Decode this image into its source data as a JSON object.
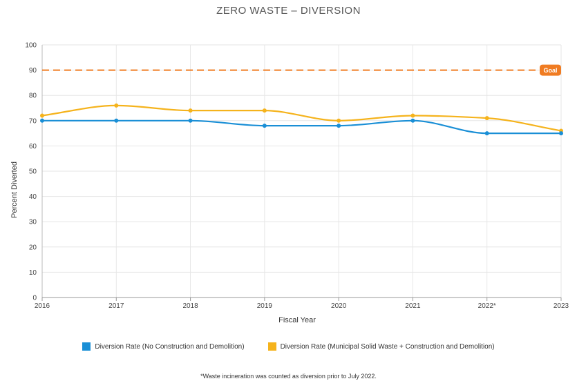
{
  "chart_data": {
    "type": "line",
    "title": "ZERO WASTE – DIVERSION",
    "xlabel": "Fiscal Year",
    "ylabel": "Percent Diverted",
    "categories": [
      "2016",
      "2017",
      "2018",
      "2019",
      "2020",
      "2021",
      "2022*",
      "2023"
    ],
    "ylim": [
      0,
      100
    ],
    "yticks": [
      0,
      10,
      20,
      30,
      40,
      50,
      60,
      70,
      80,
      90,
      100
    ],
    "grid": true,
    "legend_position": "bottom",
    "series": [
      {
        "name": "Diversion Rate (No Construction and Demolition)",
        "color": "#1a8fd6",
        "values": [
          70,
          70,
          70,
          68,
          68,
          70,
          65,
          65
        ]
      },
      {
        "name": "Diversion Rate (Municipal Solid Waste + Construction and Demolition)",
        "color": "#f5b31c",
        "values": [
          72,
          76,
          74,
          74,
          70,
          72,
          71,
          66
        ]
      }
    ],
    "goal": {
      "label": "Goal",
      "value": 90,
      "color": "#f07c22"
    }
  },
  "footnote": "*Waste incineration was counted as diversion prior to July 2022."
}
